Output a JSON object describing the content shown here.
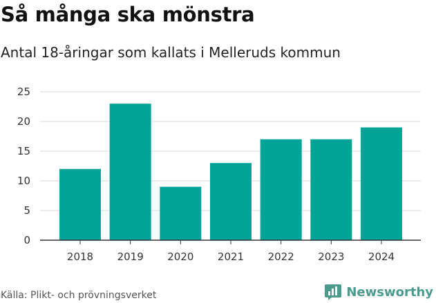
{
  "header": {
    "title": "Så många ska mönstra",
    "subtitle": "Antal 18-åringar som kallats i Melleruds kommun"
  },
  "footer": {
    "source": "Källa: Plikt- och prövningsverket",
    "brand": "Newsworthy",
    "brand_icon": "chart-speech-bubble-icon"
  },
  "colors": {
    "bar": "#00a497",
    "grid": "#d9d9d9",
    "axis": "#333333",
    "brand": "#4a9b8e"
  },
  "chart_data": {
    "type": "bar",
    "title": "Så många ska mönstra",
    "subtitle": "Antal 18-åringar som kallats i Melleruds kommun",
    "xlabel": "",
    "ylabel": "",
    "categories": [
      "2018",
      "2019",
      "2020",
      "2021",
      "2022",
      "2023",
      "2024"
    ],
    "values": [
      12,
      23,
      9,
      13,
      17,
      17,
      19
    ],
    "ylim": [
      0,
      25
    ],
    "yticks": [
      0,
      5,
      10,
      15,
      20,
      25
    ],
    "grid": true,
    "legend": "none"
  }
}
